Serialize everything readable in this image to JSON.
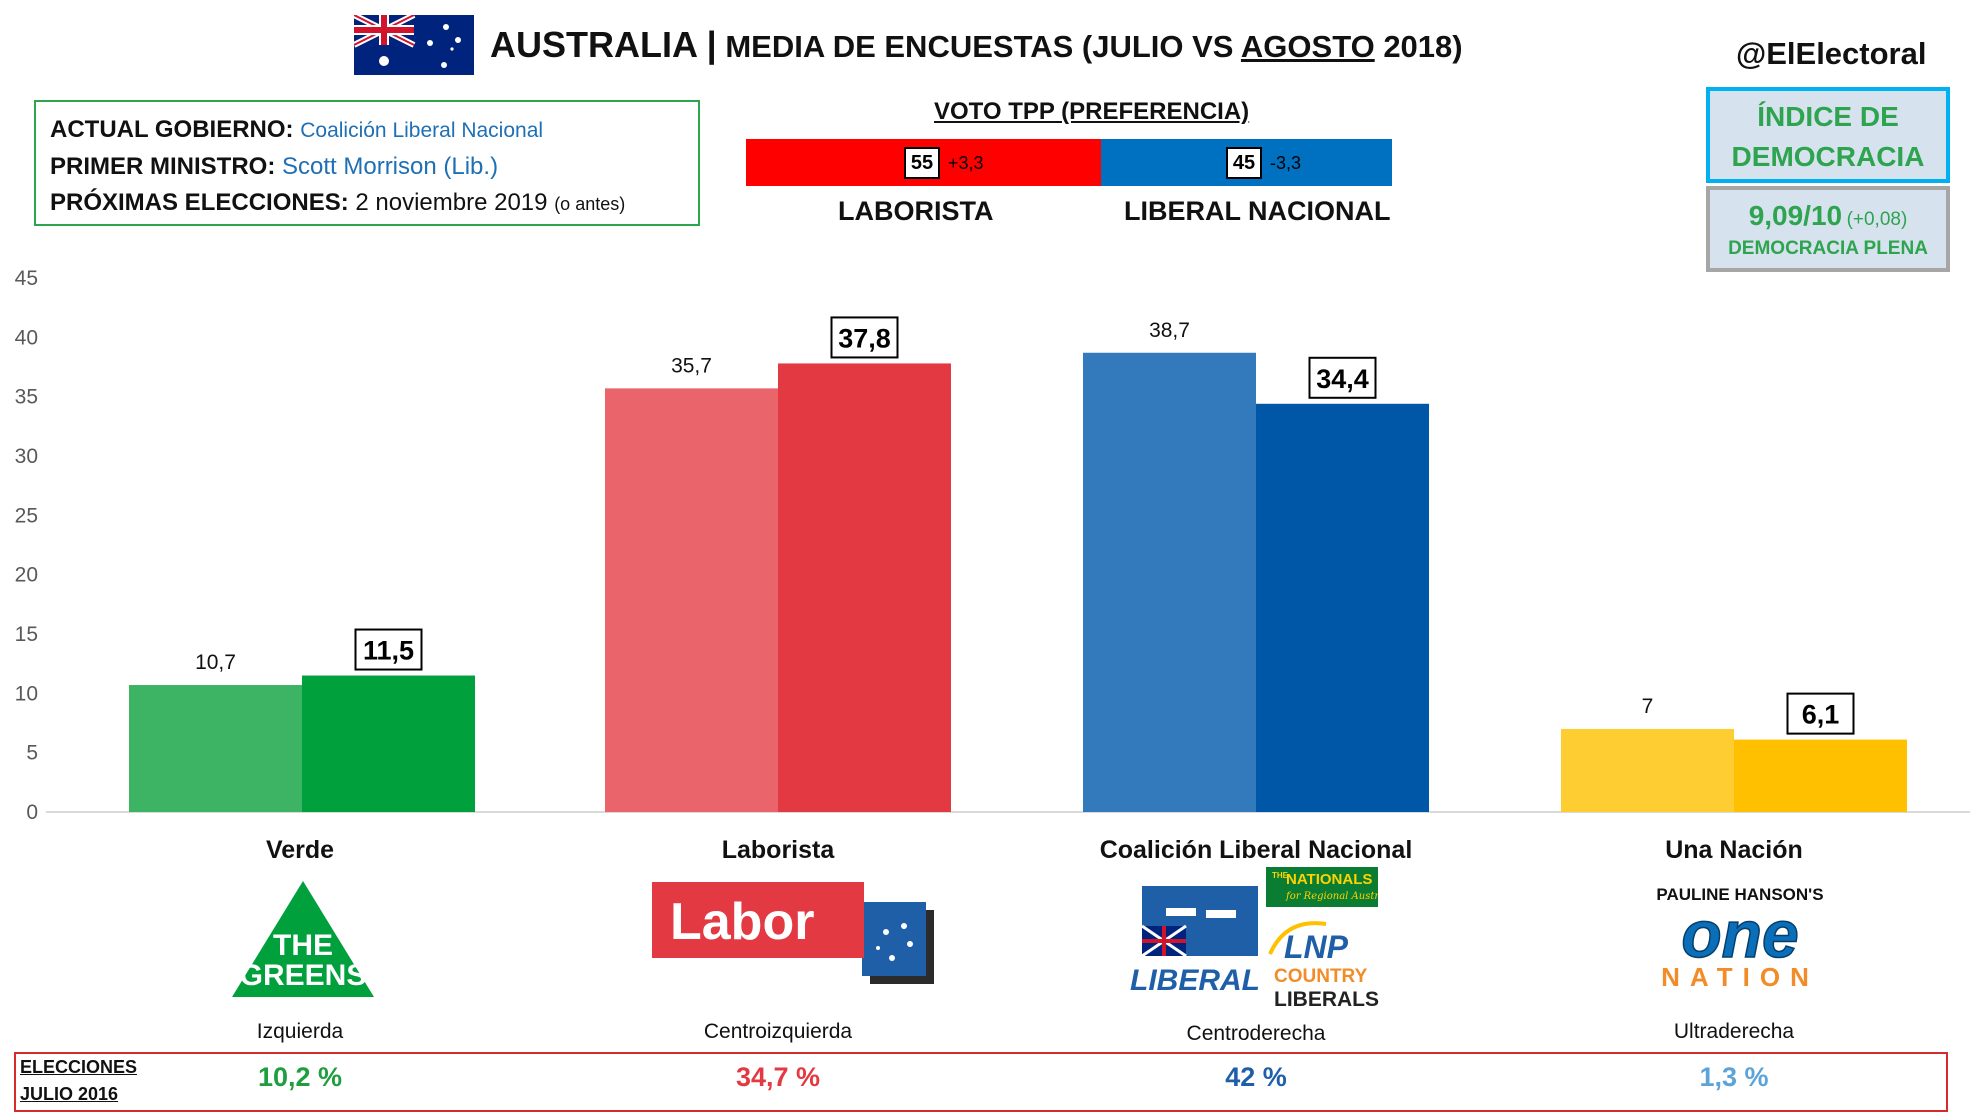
{
  "header": {
    "title_main": "AUSTRALIA |",
    "title_sub": " MEDIA DE ENCUESTAS",
    "title_paren_open": " (JULIO VS ",
    "title_underlined": "AGOSTO",
    "title_paren_close": " 2018)",
    "handle": "@ElElectoral"
  },
  "government": {
    "gov_label": "ACTUAL GOBIERNO:",
    "gov_value": "Coalición Liberal Nacional",
    "pm_label": "PRIMER MINISTRO:",
    "pm_value": "Scott Morrison (Lib.)",
    "election_label": "PRÓXIMAS ELECCIONES:",
    "election_value": "2 noviembre 2019",
    "election_note": "(o antes)"
  },
  "tpp": {
    "title": "VOTO TPP (PREFERENCIA)",
    "labor_value": "55",
    "labor_delta": "+3,3",
    "labor_label": "LABORISTA",
    "coalition_value": "45",
    "coalition_delta": "-3,3",
    "coalition_label": "LIBERAL NACIONAL",
    "labor_share": 55,
    "colors": {
      "labor": "#ff0000",
      "coalition": "#0070c0"
    }
  },
  "democracy_index": {
    "title_line1": "ÍNDICE DE",
    "title_line2": "DEMOCRACIA",
    "score": "9,09/10",
    "delta": "(+0,08)",
    "category": "DEMOCRACIA PLENA"
  },
  "chart_data": {
    "type": "bar",
    "categories": [
      "Verde",
      "Laborista",
      "Coalición Liberal Nacional",
      "Una Nación"
    ],
    "series": [
      {
        "values": [
          10.7,
          35.7,
          38.7,
          7.0
        ],
        "labels": [
          "10,7",
          "35,7",
          "38,7",
          "7"
        ],
        "colors": [
          "#3cb464",
          "#e9656b",
          "#337abd",
          "#fdcd32"
        ]
      },
      {
        "values": [
          11.5,
          37.8,
          34.4,
          6.1
        ],
        "labels": [
          "11,5",
          "37,8",
          "34,4",
          "6,1"
        ],
        "colors": [
          "#00a03c",
          "#e33943",
          "#0056a7",
          "#ffc000"
        ]
      }
    ],
    "ylim": [
      0,
      45
    ],
    "yticks": [
      "0",
      "5",
      "10",
      "15",
      "20",
      "25",
      "30",
      "35",
      "40",
      "45"
    ],
    "grid": false,
    "title": "",
    "xlabel": "",
    "ylabel": ""
  },
  "parties": [
    {
      "name": "Verde",
      "ideology": "Izquierda",
      "election_2016": "10,2 %",
      "color": "#1e9e3e"
    },
    {
      "name": "Laborista",
      "ideology": "Centroizquierda",
      "election_2016": "34,7 %",
      "color": "#e33943"
    },
    {
      "name": "Coalición Liberal Nacional",
      "ideology": "Centroderecha",
      "election_2016": "42 %",
      "color": "#1f5fa8"
    },
    {
      "name": "Una Nación",
      "ideology": "Ultraderecha",
      "election_2016": "1,3 %",
      "color": "#5ba3d9"
    }
  ],
  "logos": {
    "greens_line1": "THE",
    "greens_line2": "GREENS",
    "labor": "Labor",
    "liberal": "LIBERAL",
    "nationals": "NATIONALS",
    "nationals_prefix": "THE",
    "nationals_tagline": "for Regional Australia",
    "lnp": "LNP",
    "country_liberals_1": "COUNTRY",
    "country_liberals_2": "LIBERALS",
    "one_nation_top": "PAULINE HANSON'S",
    "one_nation_mid": "one",
    "one_nation_bottom": "NATION"
  },
  "elections": {
    "label_line1": "ELECCIONES",
    "label_line2": "JULIO 2016"
  }
}
